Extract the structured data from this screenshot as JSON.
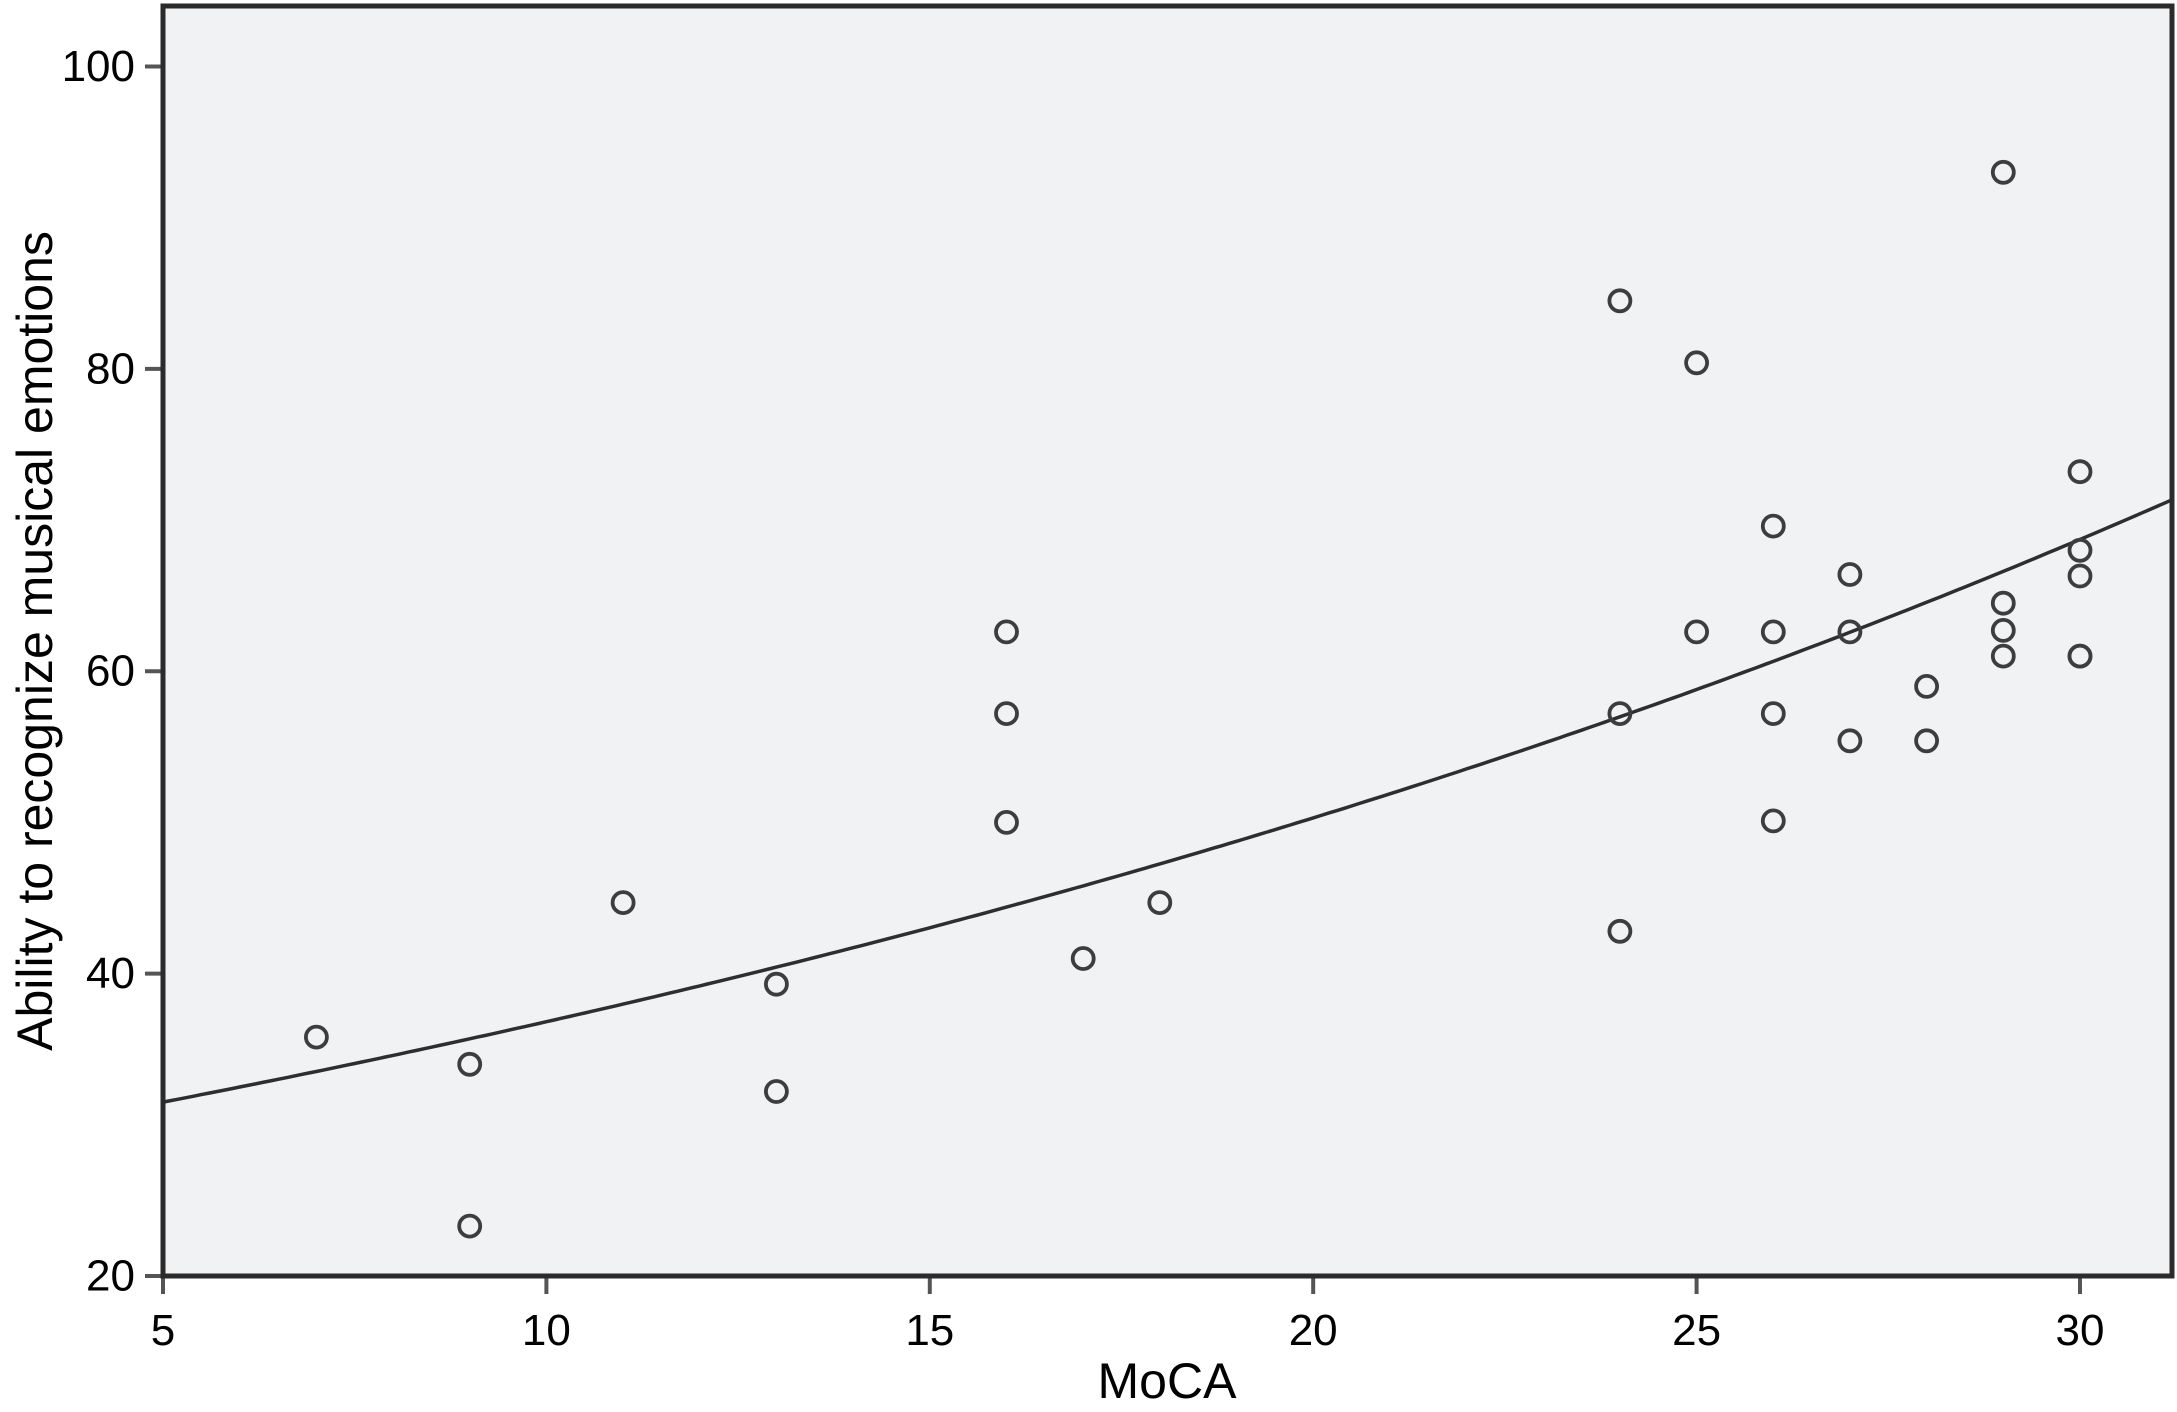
{
  "chart_data": {
    "type": "scatter",
    "title": "",
    "xlabel": "MoCA",
    "ylabel": "Ability to recognize musical emotions",
    "x_ticks": [
      5,
      10,
      15,
      20,
      25,
      30
    ],
    "y_ticks": [
      20,
      40,
      60,
      80,
      100
    ],
    "xlim": [
      5,
      31.2
    ],
    "ylim": [
      20,
      104
    ],
    "grid": false,
    "legend": false,
    "marker_style": "open-circle",
    "points": [
      [
        7,
        35.8
      ],
      [
        9,
        34.0
      ],
      [
        9,
        23.3
      ],
      [
        11,
        44.7
      ],
      [
        13,
        39.3
      ],
      [
        13,
        32.2
      ],
      [
        16,
        62.6
      ],
      [
        16,
        57.2
      ],
      [
        16,
        50.0
      ],
      [
        17,
        41.0
      ],
      [
        18,
        44.7
      ],
      [
        24,
        84.5
      ],
      [
        24,
        57.2
      ],
      [
        24,
        42.8
      ],
      [
        25,
        80.4
      ],
      [
        25,
        62.6
      ],
      [
        26,
        69.6
      ],
      [
        26,
        62.6
      ],
      [
        26,
        57.2
      ],
      [
        26,
        50.1
      ],
      [
        27,
        66.4
      ],
      [
        27,
        62.6
      ],
      [
        27,
        55.4
      ],
      [
        28,
        59.0
      ],
      [
        28,
        55.4
      ],
      [
        29,
        93.0
      ],
      [
        29,
        64.5
      ],
      [
        29,
        62.7
      ],
      [
        29,
        61.0
      ],
      [
        30,
        73.2
      ],
      [
        30,
        68.0
      ],
      [
        30,
        66.3
      ],
      [
        30,
        61.0
      ],
      [
        30,
        61.0
      ]
    ],
    "trend_line": {
      "kind": "exponential",
      "formula": "y = 26.95 * exp(0.0312 * x)",
      "a": 26.95,
      "b": 0.0312,
      "x_start": 5,
      "x_end": 31.2
    },
    "colors": {
      "plot_background": "#f1f2f4",
      "frame": "#2b2b2b",
      "tick": "#555555",
      "marker": "#3d3d3d",
      "trend": "#2e2e2e",
      "label": "#000000"
    }
  }
}
